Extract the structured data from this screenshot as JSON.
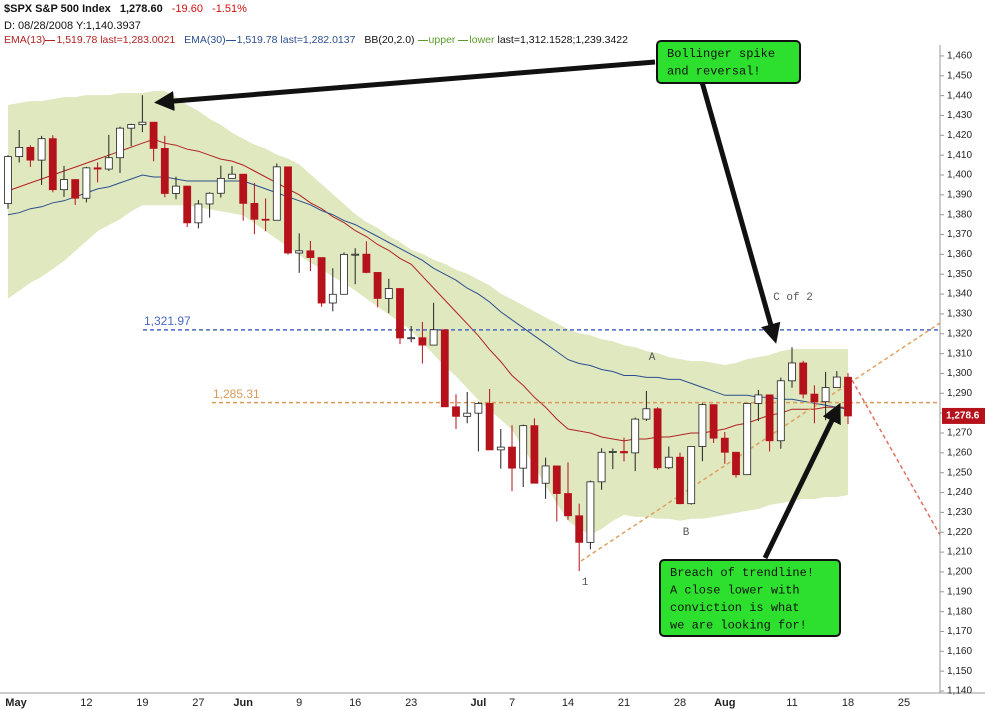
{
  "header": {
    "symbol": "$SPX S&P 500 Index",
    "price": "1,278.60",
    "change": "-19.60",
    "change_pct": "-1.51%",
    "cursor": "D: 08/28/2008 Y:1,140.3937"
  },
  "chart_data": {
    "type": "candlestick",
    "categories": [
      "May",
      null,
      null,
      null,
      null,
      null,
      null,
      "12",
      null,
      null,
      null,
      null,
      "19",
      null,
      null,
      null,
      null,
      "27",
      null,
      null,
      null,
      "Jun",
      null,
      null,
      null,
      null,
      "9",
      null,
      null,
      null,
      null,
      "16",
      null,
      null,
      null,
      null,
      "23",
      null,
      null,
      null,
      null,
      null,
      "Jul",
      null,
      null,
      "7",
      null,
      null,
      null,
      null,
      "14",
      null,
      null,
      null,
      null,
      "21",
      null,
      null,
      null,
      null,
      "28",
      null,
      null,
      null,
      "Aug",
      null,
      null,
      null,
      null,
      null,
      "11",
      null,
      null,
      null,
      null,
      "18",
      null,
      null,
      null,
      null,
      "25"
    ],
    "open": [
      1385.6,
      1409.3,
      1413.9,
      1407.5,
      1418.3,
      1392.6,
      1397.7,
      1388.3,
      1403.6,
      1403.0,
      1408.7,
      1423.6,
      1425.4,
      1426.6,
      1413.4,
      1390.7,
      1394.4,
      1375.9,
      1385.4,
      1390.8,
      1398.3,
      1400.4,
      1385.7,
      1377.7,
      1377.2,
      1404.1,
      1360.7,
      1361.8,
      1358.4,
      1335.5,
      1339.9,
      1360.0,
      1360.1,
      1350.9,
      1337.8,
      1342.8,
      1317.9,
      1318.0,
      1314.3,
      1322.0,
      1283.2,
      1278.4,
      1280.0,
      1284.9,
      1261.5,
      1262.9,
      1252.3,
      1273.7,
      1244.7,
      1253.4,
      1239.5,
      1228.3,
      1214.9,
      1245.4,
      1260.3,
      1260.7,
      1260.0,
      1277.0,
      1282.2,
      1252.5,
      1257.8,
      1234.4,
      1263.2,
      1284.3,
      1267.4,
      1260.3,
      1249.0,
      1284.9,
      1289.2,
      1266.1,
      1296.3,
      1305.3,
      1289.6,
      1285.8,
      1292.9,
      1298.1,
      null,
      null,
      null,
      null,
      null
    ],
    "high": [
      1410.0,
      1422.7,
      1415.0,
      1419.7,
      1420.0,
      1404.6,
      1398.0,
      1404.1,
      1406.3,
      1420.2,
      1424.4,
      1425.8,
      1440.2,
      1426.6,
      1419.7,
      1399.1,
      1394.4,
      1387.4,
      1391.3,
      1404.7,
      1404.5,
      1400.4,
      1396.0,
      1388.2,
      1405.8,
      1404.1,
      1370.6,
      1366.8,
      1358.4,
      1353.0,
      1361.0,
      1363.1,
      1366.6,
      1350.9,
      1347.7,
      1342.8,
      1323.9,
      1326.0,
      1335.6,
      1322.0,
      1289.5,
      1290.7,
      1285.7,
      1292.2,
      1272.0,
      1273.9,
      1274.2,
      1277.4,
      1257.6,
      1253.4,
      1255.2,
      1234.4,
      1246.0,
      1262.3,
      1262.2,
      1267.7,
      1277.8,
      1291.2,
      1283.0,
      1263.2,
      1260.1,
      1263.2,
      1284.9,
      1284.3,
      1270.5,
      1260.3,
      1285.0,
      1291.7,
      1289.2,
      1297.9,
      1313.2,
      1306.4,
      1294.0,
      1300.8,
      1301.2,
      1300.2,
      null,
      null,
      null,
      null,
      null
    ],
    "low": [
      1383.0,
      1406.3,
      1404.1,
      1395.0,
      1391.3,
      1389.0,
      1384.9,
      1386.2,
      1396.3,
      1402.0,
      1401.0,
      1414.5,
      1421.6,
      1406.9,
      1388.8,
      1387.8,
      1373.8,
      1373.1,
      1378.5,
      1388.6,
      1398.1,
      1377.0,
      1370.2,
      1371.7,
      1377.2,
      1359.9,
      1350.7,
      1351.6,
      1333.6,
      1331.3,
      1339.9,
      1345.0,
      1350.5,
      1333.3,
      1330.4,
      1314.8,
      1315.7,
      1305.0,
      1314.3,
      1283.1,
      1272.0,
      1274.9,
      1260.7,
      1261.5,
      1252.0,
      1240.7,
      1242.8,
      1244.6,
      1236.8,
      1225.4,
      1226.3,
      1200.4,
      1211.4,
      1241.4,
      1251.8,
      1255.7,
      1250.8,
      1276.1,
      1251.5,
      1251.8,
      1234.1,
      1233.9,
      1255.8,
      1265.0,
      1254.5,
      1247.5,
      1249.0,
      1276.0,
      1260.7,
      1262.1,
      1292.8,
      1287.5,
      1274.9,
      1276.4,
      1292.9,
      1274.5,
      null,
      null,
      null,
      null,
      null
    ],
    "close": [
      1409.3,
      1413.9,
      1407.5,
      1418.3,
      1392.6,
      1397.7,
      1388.3,
      1403.6,
      1403.0,
      1408.7,
      1423.6,
      1425.4,
      1426.6,
      1413.4,
      1390.7,
      1394.4,
      1375.9,
      1385.4,
      1390.8,
      1398.3,
      1400.4,
      1385.7,
      1377.7,
      1377.2,
      1404.1,
      1360.7,
      1361.8,
      1358.4,
      1335.5,
      1339.9,
      1360.0,
      1360.1,
      1350.9,
      1337.8,
      1342.8,
      1317.9,
      1318.0,
      1314.3,
      1322.0,
      1283.2,
      1278.4,
      1280.0,
      1284.9,
      1261.5,
      1262.9,
      1252.3,
      1273.7,
      1244.7,
      1253.4,
      1239.5,
      1228.3,
      1214.9,
      1245.4,
      1260.3,
      1260.7,
      1260.0,
      1277.0,
      1282.2,
      1252.5,
      1257.8,
      1234.4,
      1263.2,
      1284.3,
      1267.4,
      1260.3,
      1249.0,
      1284.9,
      1289.2,
      1266.1,
      1296.3,
      1305.3,
      1289.6,
      1285.8,
      1292.9,
      1298.2,
      1278.6,
      null,
      null,
      null,
      null,
      null
    ],
    "up_color": "#ffffff",
    "down_color": "#b5121b",
    "series": [
      {
        "name": "EMA(13)",
        "color": "#b22222",
        "info": "1,519.78 last=1,283.0021",
        "values": [
          1392,
          1394,
          1396,
          1398,
          1400,
          1402,
          1404,
          1406,
          1408,
          1410,
          1412,
          1414,
          1416,
          1418,
          1416,
          1415,
          1413,
          1412,
          1410,
          1408,
          1407,
          1405,
          1402,
          1399,
          1396,
          1393,
          1390,
          1386,
          1383,
          1379,
          1376,
          1372,
          1369,
          1365,
          1362,
          1358,
          1355,
          1349,
          1343,
          1337,
          1331,
          1325,
          1319,
          1312,
          1306,
          1299,
          1294,
          1288,
          1283,
          1277,
          1272,
          1271,
          1270,
          1268,
          1267,
          1266,
          1267,
          1267,
          1268,
          1268,
          1269,
          1270,
          1270,
          1271,
          1272,
          1274,
          1275,
          1277,
          1279,
          1280,
          1282,
          1282,
          1282,
          1283,
          1283,
          1283,
          null,
          null,
          null,
          null,
          null
        ]
      },
      {
        "name": "EMA(30)",
        "color": "#2b4f8f",
        "info": "1,519.78 last=1,282.0137",
        "values": [
          1380,
          1381,
          1383,
          1384,
          1386,
          1387,
          1389,
          1391,
          1393,
          1394,
          1396,
          1398,
          1400,
          1399,
          1399,
          1398,
          1397,
          1397,
          1397,
          1397,
          1397,
          1397,
          1395,
          1393,
          1391,
          1389,
          1387,
          1385,
          1382,
          1380,
          1377,
          1375,
          1372,
          1369,
          1366,
          1363,
          1360,
          1357,
          1353,
          1350,
          1347,
          1343,
          1340,
          1336,
          1331,
          1327,
          1323,
          1319,
          1315,
          1311,
          1307,
          1305,
          1304,
          1302,
          1301,
          1299,
          1299,
          1298,
          1298,
          1297,
          1297,
          1295,
          1293,
          1291,
          1289,
          1289,
          1289,
          1288,
          1288,
          1287,
          1287,
          1286,
          1285,
          1284,
          1283,
          1282,
          null,
          null,
          null,
          null,
          null
        ]
      }
    ],
    "bollinger": {
      "name": "BB(20,2.0)",
      "fill": "#dfe8bf",
      "legend_color": "#5a9a2a",
      "last": "last=1,312.1528;1,239.3422",
      "upper": {
        "name": "upper",
        "values": [
          1435,
          1436,
          1437,
          1437,
          1438,
          1439,
          1439,
          1440,
          1440,
          1440,
          1441,
          1441,
          1441,
          1442,
          1442,
          1439,
          1435,
          1432,
          1428,
          1425,
          1421,
          1418,
          1415,
          1413,
          1410,
          1408,
          1405,
          1400,
          1395,
          1390,
          1385,
          1380,
          1376,
          1373,
          1369,
          1366,
          1362,
          1360,
          1357,
          1355,
          1352,
          1350,
          1347,
          1344,
          1340,
          1337,
          1334,
          1331,
          1328,
          1325,
          1322,
          1320,
          1319,
          1317,
          1316,
          1314,
          1313,
          1311,
          1310,
          1308,
          1307,
          1306,
          1306,
          1305,
          1304,
          1305,
          1307,
          1308,
          1309,
          1311,
          1312,
          1312,
          1312,
          1312,
          1312,
          1312,
          null,
          null,
          null,
          null,
          null
        ]
      },
      "lower": {
        "name": "lower",
        "values": [
          1338,
          1342,
          1346,
          1349,
          1353,
          1357,
          1362,
          1367,
          1372,
          1375,
          1378,
          1382,
          1385,
          1385,
          1385,
          1385,
          1385,
          1384,
          1383,
          1382,
          1381,
          1380,
          1376,
          1372,
          1368,
          1364,
          1360,
          1356,
          1353,
          1349,
          1346,
          1342,
          1338,
          1334,
          1330,
          1326,
          1322,
          1316,
          1310,
          1304,
          1299,
          1293,
          1287,
          1282,
          1277,
          1272,
          1263,
          1254,
          1244,
          1235,
          1226,
          1222,
          1219,
          1222,
          1226,
          1229,
          1228,
          1228,
          1227,
          1227,
          1226,
          1227,
          1227,
          1228,
          1229,
          1230,
          1231,
          1232,
          1234,
          1235,
          1236,
          1237,
          1237,
          1238,
          1238,
          1239,
          null,
          null,
          null,
          null,
          null
        ]
      }
    },
    "hlines": [
      {
        "value": 1321.97,
        "label": "1,321.97",
        "color": "#4a68c0"
      },
      {
        "value": 1285.31,
        "label": "1,285.31",
        "color": "#dc9a5a"
      }
    ],
    "last_price": {
      "value": 1278.6,
      "label": "1,278.6",
      "color": "#b5121b"
    },
    "annotations": [
      "A",
      "B",
      "C of 2",
      "1"
    ],
    "callouts": [
      {
        "lines": [
          "Bollinger spike",
          "and reversal!"
        ]
      },
      {
        "lines": [
          "Breach of trendline!",
          "A close lower with",
          "conviction is what",
          "we are looking for!"
        ]
      }
    ],
    "callout_color": "#2de02d",
    "ylim": [
      1139,
      1465.5
    ],
    "yticks": [
      {
        "value": 1140,
        "label": "1,140"
      },
      {
        "value": 1150,
        "label": "1,150"
      },
      {
        "value": 1160,
        "label": "1,160"
      },
      {
        "value": 1170,
        "label": "1,170"
      },
      {
        "value": 1180,
        "label": "1,180"
      },
      {
        "value": 1190,
        "label": "1,190"
      },
      {
        "value": 1200,
        "label": "1,200"
      },
      {
        "value": 1210,
        "label": "1,210"
      },
      {
        "value": 1220,
        "label": "1,220"
      },
      {
        "value": 1230,
        "label": "1,230"
      },
      {
        "value": 1240,
        "label": "1,240"
      },
      {
        "value": 1250,
        "label": "1,250"
      },
      {
        "value": 1260,
        "label": "1,260"
      },
      {
        "value": 1270,
        "label": "1,270"
      },
      {
        "value": 1280,
        "label": "1,280"
      },
      {
        "value": 1290,
        "label": "1,290"
      },
      {
        "value": 1300,
        "label": "1,300"
      },
      {
        "value": 1310,
        "label": "1,310"
      },
      {
        "value": 1320,
        "label": "1,320"
      },
      {
        "value": 1330,
        "label": "1,330"
      },
      {
        "value": 1340,
        "label": "1,340"
      },
      {
        "value": 1350,
        "label": "1,350"
      },
      {
        "value": 1360,
        "label": "1,360"
      },
      {
        "value": 1370,
        "label": "1,370"
      },
      {
        "value": 1380,
        "label": "1,380"
      },
      {
        "value": 1390,
        "label": "1,390"
      },
      {
        "value": 1400,
        "label": "1,400"
      },
      {
        "value": 1410,
        "label": "1,410"
      },
      {
        "value": 1420,
        "label": "1,420"
      },
      {
        "value": 1430,
        "label": "1,430"
      },
      {
        "value": 1440,
        "label": "1,440"
      },
      {
        "value": 1450,
        "label": "1,450"
      },
      {
        "value": 1460,
        "label": "1,460"
      }
    ],
    "grid": false
  }
}
